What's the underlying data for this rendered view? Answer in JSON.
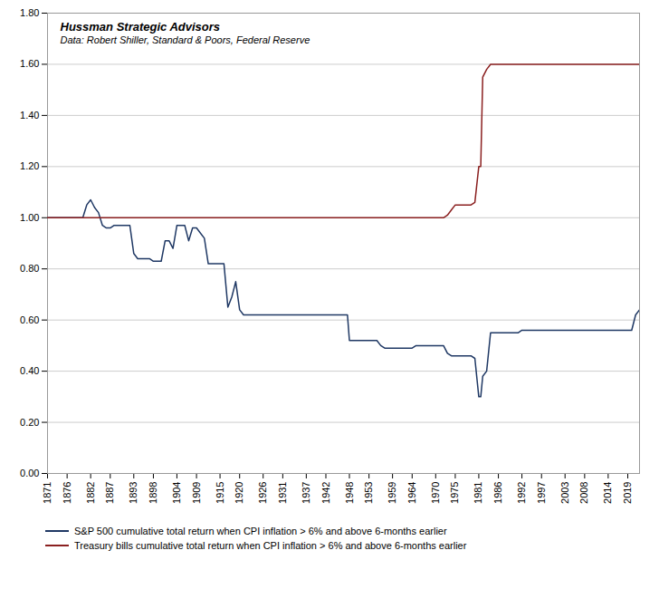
{
  "chart_data": {
    "type": "line",
    "title": "Hussman Strategic Advisors",
    "subtitle": "Data: Robert Shiller, Standard & Poors, Federal Reserve",
    "xlim": [
      1871,
      2022
    ],
    "xticks": [
      1871,
      1876,
      1882,
      1887,
      1893,
      1898,
      1904,
      1909,
      1915,
      1920,
      1926,
      1931,
      1937,
      1942,
      1948,
      1953,
      1959,
      1964,
      1970,
      1975,
      1981,
      1986,
      1992,
      1997,
      2003,
      2008,
      2014,
      2019
    ],
    "ylim": [
      0.0,
      1.8
    ],
    "yticks": [
      {
        "value": 0.0,
        "label": "0.00"
      },
      {
        "value": 0.2,
        "label": "0.20"
      },
      {
        "value": 0.4,
        "label": "0.40"
      },
      {
        "value": 0.6,
        "label": "0.60"
      },
      {
        "value": 0.8,
        "label": "0.80"
      },
      {
        "value": 1.0,
        "label": "1.00"
      },
      {
        "value": 1.2,
        "label": "1.20"
      },
      {
        "value": 1.4,
        "label": "1.40"
      },
      {
        "value": 1.6,
        "label": "1.60"
      },
      {
        "value": 1.8,
        "label": "1.80"
      }
    ],
    "grid": "y",
    "legend": "bottom",
    "series": [
      {
        "name": "S&P 500 cumulative total return when CPI inflation > 6% and above 6-months earlier",
        "color": "#1F3864",
        "x": [
          1871,
          1876,
          1879,
          1880,
          1881,
          1882,
          1883,
          1884,
          1885,
          1886,
          1887,
          1888,
          1889,
          1892,
          1893,
          1894,
          1895,
          1896,
          1897,
          1898,
          1899,
          1900,
          1901,
          1902,
          1903,
          1904,
          1905,
          1906,
          1907,
          1908,
          1909,
          1910,
          1911,
          1912,
          1913,
          1916,
          1917,
          1918,
          1919,
          1920,
          1921,
          1922,
          1941,
          1942,
          1943,
          1944,
          1945,
          1946,
          1947,
          1947.5,
          1948,
          1953,
          1954,
          1955,
          1956,
          1957,
          1958,
          1959,
          1964,
          1965,
          1969,
          1970,
          1972,
          1973,
          1974,
          1975,
          1979,
          1980,
          1981,
          1981.5,
          1982,
          1983,
          1984,
          1990,
          1991,
          1992,
          2019,
          2020,
          2021,
          2022
        ],
        "values": [
          1.0,
          1.0,
          1.0,
          1.0,
          1.05,
          1.07,
          1.04,
          1.02,
          0.97,
          0.96,
          0.96,
          0.97,
          0.97,
          0.97,
          0.86,
          0.84,
          0.84,
          0.84,
          0.84,
          0.83,
          0.83,
          0.83,
          0.91,
          0.91,
          0.88,
          0.97,
          0.97,
          0.97,
          0.91,
          0.96,
          0.96,
          0.94,
          0.92,
          0.82,
          0.82,
          0.82,
          0.65,
          0.69,
          0.75,
          0.64,
          0.62,
          0.62,
          0.62,
          0.62,
          0.62,
          0.62,
          0.62,
          0.62,
          0.62,
          0.62,
          0.52,
          0.52,
          0.52,
          0.52,
          0.5,
          0.49,
          0.49,
          0.49,
          0.49,
          0.5,
          0.5,
          0.5,
          0.5,
          0.47,
          0.46,
          0.46,
          0.46,
          0.45,
          0.3,
          0.3,
          0.38,
          0.4,
          0.55,
          0.55,
          0.55,
          0.56,
          0.56,
          0.56,
          0.62,
          0.64
        ]
      },
      {
        "name": "Treasury bills cumulative total return when CPI inflation > 6% and above 6-months earlier",
        "color": "#8B2020",
        "x": [
          1871,
          1972,
          1973,
          1974,
          1975,
          1976,
          1977,
          1978,
          1979,
          1980,
          1981,
          1981.5,
          1982,
          1983,
          1984,
          2022
        ],
        "values": [
          1.0,
          1.0,
          1.01,
          1.03,
          1.05,
          1.05,
          1.05,
          1.05,
          1.05,
          1.06,
          1.2,
          1.2,
          1.55,
          1.58,
          1.6,
          1.6
        ]
      }
    ]
  }
}
